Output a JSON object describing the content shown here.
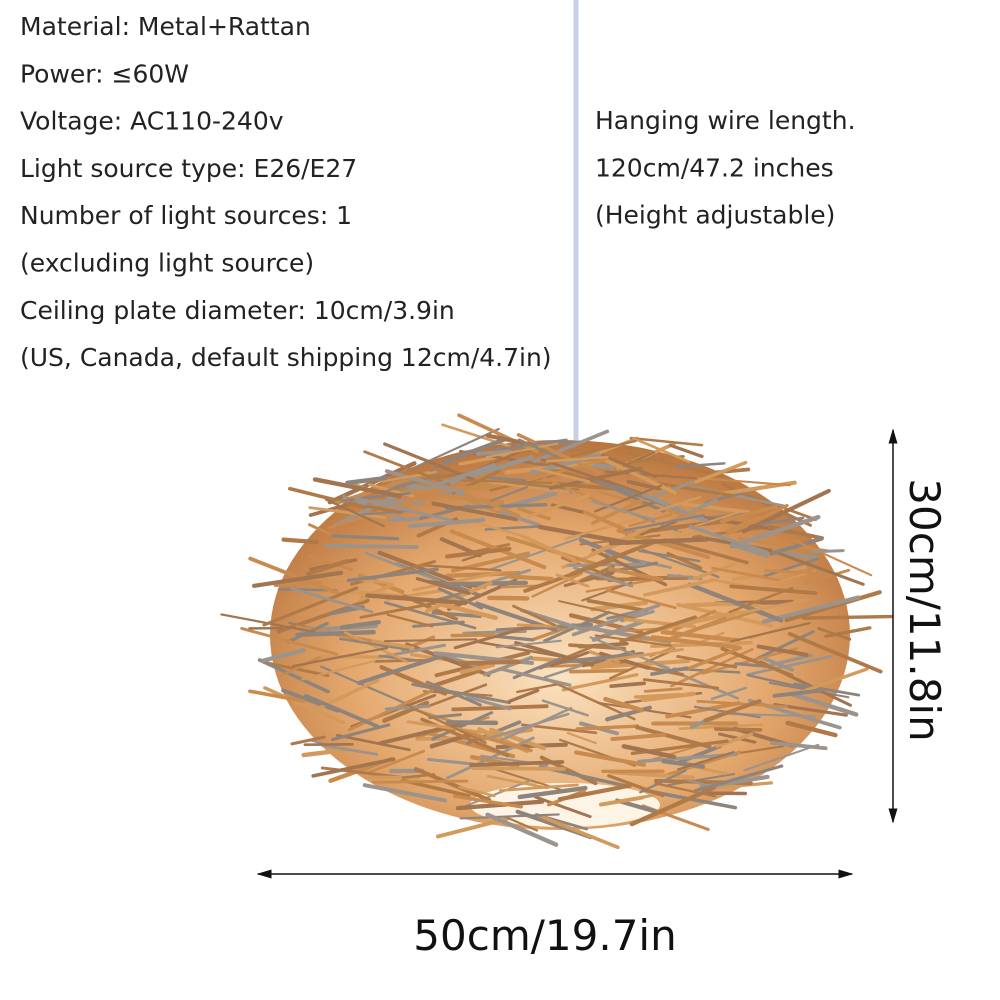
{
  "specs": [
    "Material: Metal+Rattan",
    "Power: ≤60W",
    "Voltage: AC110-240v",
    "Light source type: E26/E27",
    "Number of light sources: 1",
    "(excluding light source)",
    "Ceiling plate diameter: 10cm/3.9in",
    "(US, Canada, default shipping 12cm/4.7in)"
  ],
  "wire_info": [
    "Hanging wire length.",
    "120cm/47.2 inches",
    "(Height adjustable)"
  ],
  "dimensions": {
    "height": "30cm/11.8in",
    "width": "50cm/19.7in"
  }
}
